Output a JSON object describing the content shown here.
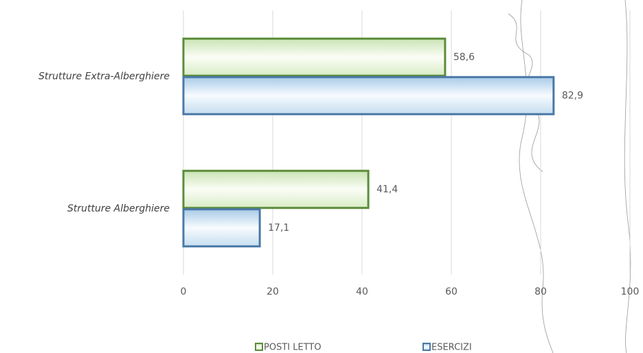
{
  "chart_data": {
    "type": "bar",
    "orientation": "horizontal",
    "categories": [
      "Strutture Extra-Alberghiere",
      "Strutture Alberghiere"
    ],
    "series": [
      {
        "name": "POSTI LETTO",
        "color": "#5b8c3a",
        "values": [
          58.6,
          41.4
        ],
        "value_labels": [
          "58,6",
          "41,4"
        ]
      },
      {
        "name": "ESERCIZI",
        "color": "#4a78a6",
        "values": [
          82.9,
          17.1
        ],
        "value_labels": [
          "82,9",
          "17,1"
        ]
      }
    ],
    "xlim": [
      0,
      100
    ],
    "xticks": [
      0,
      20,
      40,
      60,
      80,
      100
    ],
    "grid": true,
    "legend": "bottom"
  }
}
